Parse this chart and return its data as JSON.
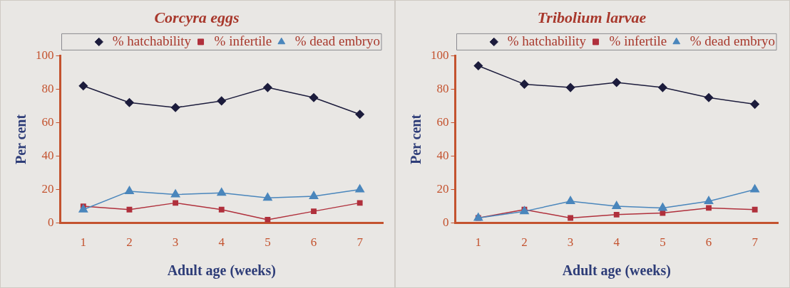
{
  "chart_data": [
    {
      "type": "line",
      "title": "Corcyra eggs",
      "xlabel": "Adult age (weeks)",
      "ylabel": "Per cent",
      "categories": [
        "1",
        "2",
        "3",
        "4",
        "5",
        "6",
        "7"
      ],
      "series": [
        {
          "name": "% hatchability",
          "color": "#1c1c3c",
          "marker": "diamond",
          "values": [
            82,
            72,
            69,
            73,
            81,
            75,
            65
          ]
        },
        {
          "name": "% infertile",
          "color": "#b0303c",
          "marker": "square",
          "values": [
            10,
            8,
            12,
            8,
            2,
            7,
            12
          ]
        },
        {
          "name": "% dead embryo",
          "color": "#4a86bc",
          "marker": "triangle",
          "values": [
            8,
            19,
            17,
            18,
            15,
            16,
            20
          ]
        }
      ],
      "ylim": [
        0,
        100
      ],
      "yticks": [
        0,
        20,
        40,
        60,
        80,
        100
      ],
      "grid": false,
      "legend": "top right",
      "line_style": "solid"
    },
    {
      "type": "line",
      "title": "Tribolium larvae",
      "xlabel": "Adult age (weeks)",
      "ylabel": "Per cent",
      "categories": [
        "1",
        "2",
        "3",
        "4",
        "5",
        "6",
        "7"
      ],
      "series": [
        {
          "name": "% hatchability",
          "color": "#1c1c3c",
          "marker": "diamond",
          "values": [
            94,
            83,
            81,
            84,
            81,
            75,
            71
          ]
        },
        {
          "name": "% infertile",
          "color": "#b0303c",
          "marker": "square",
          "values": [
            3,
            8,
            3,
            5,
            6,
            9,
            8
          ]
        },
        {
          "name": "% dead embryo",
          "color": "#4a86bc",
          "marker": "triangle",
          "values": [
            3,
            7,
            13,
            10,
            9,
            13,
            20
          ]
        }
      ],
      "ylim": [
        0,
        100
      ],
      "yticks": [
        0,
        20,
        40,
        60,
        80,
        100
      ],
      "grid": false,
      "legend": "top right",
      "line_style": "solid"
    }
  ]
}
